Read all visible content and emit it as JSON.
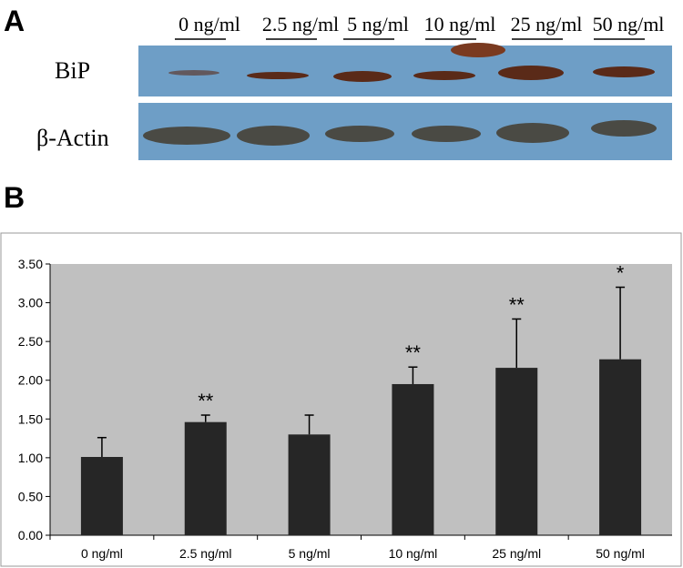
{
  "panel_a": {
    "label": "A",
    "lanes": [
      "0 ng/ml",
      "2.5 ng/ml",
      "5 ng/ml",
      "10 ng/ml",
      "25 ng/ml",
      "50 ng/ml"
    ],
    "rows": [
      "BiP",
      "β-Actin"
    ]
  },
  "panel_b": {
    "label": "B"
  },
  "chart_data": {
    "type": "bar",
    "categories": [
      "0 ng/ml",
      "2.5 ng/ml",
      "5 ng/ml",
      "10 ng/ml",
      "25 ng/ml",
      "50 ng/ml"
    ],
    "values": [
      1.01,
      1.46,
      1.3,
      1.95,
      2.16,
      2.27
    ],
    "errors": [
      0.25,
      0.09,
      0.25,
      0.22,
      0.63,
      0.93
    ],
    "significance": [
      null,
      "**",
      null,
      "**",
      "**",
      "*"
    ],
    "color": "#262626",
    "plot_background": "#c0c0c0",
    "ylim": [
      0,
      3.5
    ],
    "yticks": [
      {
        "value": 0,
        "label": "0.00"
      },
      {
        "value": 0.5,
        "label": "0.50"
      },
      {
        "value": 1,
        "label": "1.00"
      },
      {
        "value": 1.5,
        "label": "1.50"
      },
      {
        "value": 2,
        "label": "2.00"
      },
      {
        "value": 2.5,
        "label": "2.50"
      },
      {
        "value": 3,
        "label": "3.00"
      },
      {
        "value": 3.5,
        "label": "3.50"
      }
    ]
  }
}
